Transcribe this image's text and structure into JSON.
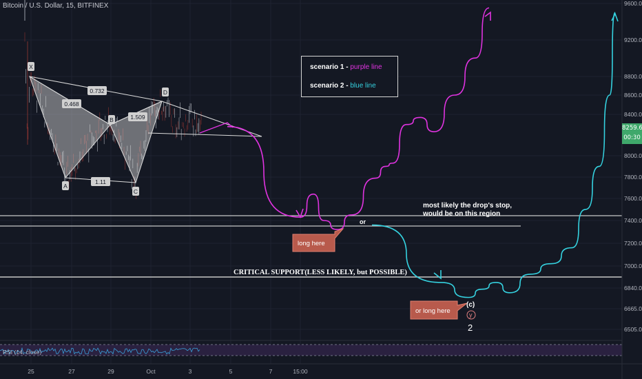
{
  "header": {
    "symbol": "Bitcoin / U.S. Dollar, 15, BITFINEX"
  },
  "legend": {
    "row1_key": "scenario 1 -",
    "row1_value": "purple line",
    "row2_key": "scenario 2 -",
    "row2_value": "blue line"
  },
  "price_axis": {
    "ticks": [
      "9600.0",
      "9200.0",
      "8800.0",
      "8600.0",
      "8400.0",
      "8000.0",
      "7800.0",
      "7600.0",
      "7400.0",
      "7200.0",
      "7000.0",
      "6840.0",
      "6665.0",
      "6505.0"
    ],
    "current_price": "8259.6",
    "countdown": "00:30"
  },
  "time_axis": {
    "ticks": [
      "25",
      "27",
      "29",
      "Oct",
      "3",
      "5",
      "7",
      "15:00"
    ]
  },
  "harmonic": {
    "points": [
      "X",
      "A",
      "B",
      "C",
      "D"
    ],
    "ratios": [
      "0.732",
      "0.468",
      "1.509",
      "1.11"
    ]
  },
  "annotations": {
    "drop_stop": [
      "most likely the drop's stop,",
      "would be on this region"
    ],
    "or_label": "or",
    "critical_support": "CRITICAL SUPPORT(LESS LIKELY, but POSSIBLE)",
    "long_here": "long here",
    "or_long_here": "or long here",
    "wave_c": "(c)",
    "wave_y": "y",
    "wave_2": "2"
  },
  "rsi": {
    "label": "RSI (14, close)"
  },
  "colors": {
    "background": "#141823",
    "scenario1": "#e033e0",
    "scenario2": "#35d2e0",
    "callout": "#b85a4c",
    "price_badge": "#3fa86b",
    "rsi_band": "#2a2140"
  },
  "chart_data": {
    "type": "line",
    "title": "Bitcoin / U.S. Dollar, 15, BITFINEX",
    "x_ticks": [
      "25",
      "27",
      "29",
      "Oct",
      "3",
      "5",
      "7",
      "15:00"
    ],
    "ylim": [
      6400,
      9700
    ],
    "y_scale": "log",
    "levels": [
      7450,
      7350,
      6920
    ],
    "series": [
      {
        "name": "purple line",
        "points": [
          [
            330,
            8280
          ],
          [
            436,
            7430
          ],
          [
            455,
            7640
          ],
          [
            470,
            7400
          ],
          [
            490,
            7320
          ],
          [
            510,
            7450
          ],
          [
            545,
            7790
          ],
          [
            560,
            7900
          ],
          [
            570,
            7930
          ],
          [
            590,
            8300
          ],
          [
            610,
            8370
          ],
          [
            630,
            8230
          ],
          [
            660,
            8600
          ],
          [
            690,
            9000
          ],
          [
            710,
            9550
          ]
        ]
      },
      {
        "name": "blue line",
        "points": [
          [
            540,
            7360
          ],
          [
            640,
            6880
          ],
          [
            680,
            6760
          ],
          [
            700,
            6830
          ],
          [
            720,
            6880
          ],
          [
            740,
            6800
          ],
          [
            770,
            6940
          ],
          [
            800,
            7020
          ],
          [
            830,
            7160
          ],
          [
            850,
            7500
          ],
          [
            870,
            7900
          ],
          [
            885,
            8600
          ],
          [
            893,
            9500
          ]
        ]
      }
    ],
    "pattern_points": {
      "X": 8800,
      "A": 7790,
      "B": 8320,
      "C": 7770,
      "D": 8520
    }
  }
}
